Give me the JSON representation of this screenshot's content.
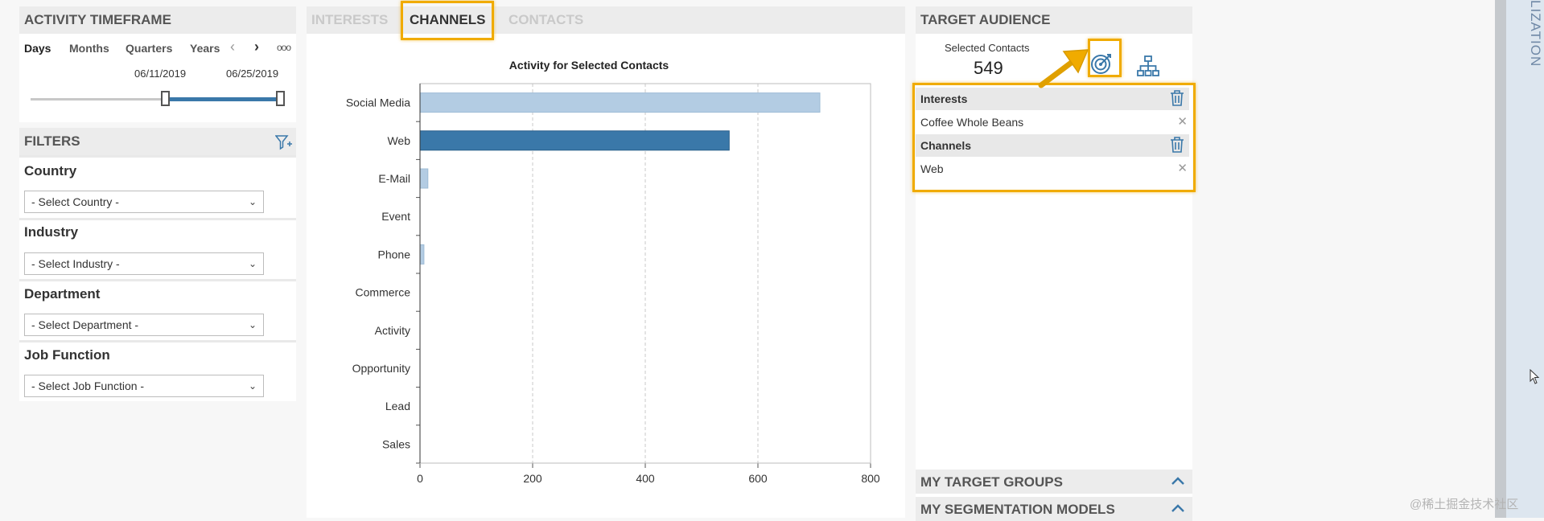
{
  "activity_timeframe": {
    "title": "ACTIVITY TIMEFRAME",
    "granularities": [
      "Days",
      "Months",
      "Quarters",
      "Years"
    ],
    "start_date": "06/11/2019",
    "end_date": "06/25/2019",
    "more_label": "ooo",
    "range_start_fraction": 0.53,
    "range_end_fraction": 1.0
  },
  "filters": {
    "title": "FILTERS",
    "items": [
      {
        "label": "Country",
        "placeholder": "- Select Country -"
      },
      {
        "label": "Industry",
        "placeholder": "- Select Industry -"
      },
      {
        "label": "Department",
        "placeholder": "- Select Department -"
      },
      {
        "label": "Job Function",
        "placeholder": "- Select Job Function -"
      }
    ]
  },
  "tabs": {
    "interests": "INTERESTS",
    "channels": "CHANNELS",
    "contacts": "CONTACTS",
    "active": "CHANNELS"
  },
  "chart_data": {
    "type": "bar",
    "orientation": "horizontal",
    "title": "Activity for Selected Contacts",
    "categories": [
      "Social Media",
      "Web",
      "E-Mail",
      "Event",
      "Phone",
      "Commerce",
      "Activity",
      "Opportunity",
      "Lead",
      "Sales"
    ],
    "values": [
      710,
      549,
      14,
      0,
      7,
      0,
      0,
      0,
      0,
      0
    ],
    "selected": [
      "Web"
    ],
    "xlim": [
      0,
      800
    ],
    "xticks": [
      0,
      200,
      400,
      600,
      800
    ],
    "grid": true,
    "colors": {
      "default": "#b3cce3",
      "selected": "#3a78a9"
    }
  },
  "target_audience": {
    "title": "TARGET AUDIENCE",
    "selected_contacts_label": "Selected Contacts",
    "selected_contacts_count": "549",
    "icons": [
      "target-icon",
      "hierarchy-icon"
    ],
    "groups": [
      {
        "category": "Interests",
        "values": [
          "Coffee Whole Beans"
        ]
      },
      {
        "category": "Channels",
        "values": [
          "Web"
        ]
      }
    ]
  },
  "bottom_sections": {
    "target_groups": "MY TARGET GROUPS",
    "segmentation_models": "MY SEGMENTATION MODELS"
  },
  "side_panel": {
    "label": "LIZATION"
  },
  "watermark": "@稀土掘金技术社区",
  "colors": {
    "accent": "#f0ab00",
    "bar_selected": "#3a78a9",
    "bar_default": "#b3cce3",
    "slider": "#3a78a9",
    "side_panel": "#dde6ef"
  }
}
